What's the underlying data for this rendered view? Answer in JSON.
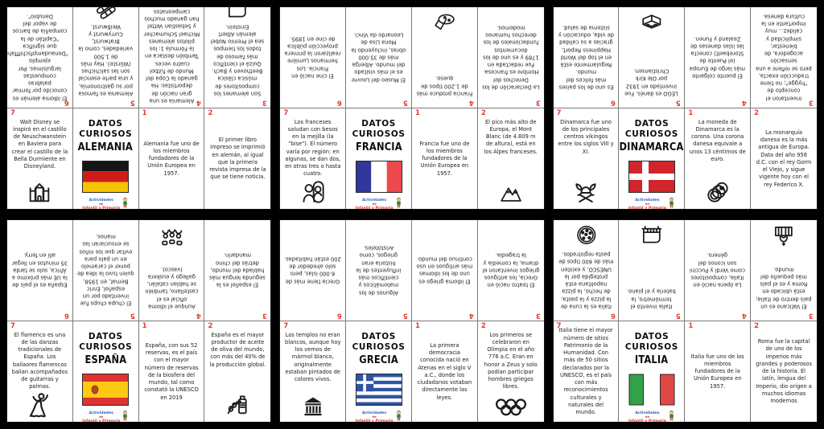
{
  "colors": {
    "page_bg": "#000000",
    "sheet_bg": "#ffffff",
    "number_red": "#e8392f",
    "text_dark": "#202020",
    "logo_blue": "#2b5fc7",
    "logo_red": "#d63b2f",
    "logo_green": "#2e8b3a",
    "flags": {
      "germany": [
        "#151515",
        "#d01b1b",
        "#f7c500"
      ],
      "france": [
        "#32379b",
        "#ffffff",
        "#ef4950"
      ],
      "denmark": [
        "#d2242c",
        "#ffffff"
      ],
      "spain": [
        "#dd3333",
        "#fdc913"
      ],
      "greece": [
        "#2e55a5",
        "#ffffff"
      ],
      "italy": [
        "#33a04a",
        "#ffffff",
        "#e04848"
      ]
    }
  },
  "cover_kicker": [
    "DATOS",
    "CURIOSOS"
  ],
  "logo": {
    "line1": "Actividades",
    "line2": "de",
    "line3": "Infantil y Primaria"
  },
  "booklets": [
    {
      "title": "ALEMANIA",
      "flag": "germany",
      "top_panels": [
        {
          "number": "6",
          "icon": null,
          "text": "El idioma alemán es conocido por formar palabras compuestas larguísimas. Por ejemplo \"Donaudampfschifffahrtsgesellschaftskapitän\", que significa \"Capitán de la compañía de barcos de vapor del Danubio\"."
        },
        {
          "number": "5",
          "icon": "sausages-icon",
          "text": "Alemania es famosa por su gastronomía, y una parte esencial son las salchichas (Würste). Hay más de 1.500 variedades, como la Bratwurst, Currywurst y Weißwurst."
        },
        {
          "number": "4",
          "icon": null,
          "text": "Alemania es una gran nación de deportistas: Ha ganado la Copa del Mundo de fútbol cuatro veces. También destaca en la Fórmula 1: los pilotos alemanes Michael Schumacher y Sebastian Vettel han ganado muchos campeonatos mundiales."
        },
        {
          "number": "3",
          "icon": "piano-icon",
          "text": "Son alemanes los compositores de música clásica Beethoven y Bach. Quizá el científico más famoso de todos los tiempos sea el Premio Nobel alemán Albert Einstein."
        }
      ],
      "bottom_panels": [
        {
          "number": "7",
          "icon": "castle-icon",
          "text": "Walt Disney se inspiró en el castillo de Neuschwanstein en Baviera para crear el castillo de la Bella Durmiente en Disneyland."
        },
        {
          "cover": true
        },
        {
          "number": "1",
          "icon": null,
          "text": "Alemania fue uno de los miembros fundadores de la Unión Europea en 1957."
        },
        {
          "number": "2",
          "icon": null,
          "text": "El primer libro impreso se imprimió en alemán, al igual que la primera revista impresa de la que se tiene noticia."
        }
      ]
    },
    {
      "title": "FRANCIA",
      "flag": "france",
      "top_panels": [
        {
          "number": "6",
          "icon": null,
          "text": "El cine nació en Francia. Los hermanos Lumière realizaron la primera proyección pública de cine en 1895."
        },
        {
          "number": "5",
          "icon": null,
          "text": "El Museo del Louvre es el más visitado del mundo. Alberga más de 35.000 obras, incluyendo la Mona Lisa de Leonardo da Vinci."
        },
        {
          "number": "4",
          "icon": "cheese-icon",
          "text": "Francia produce más de 1.200 tipos de queso."
        },
        {
          "number": "3",
          "icon": null,
          "text": "La Declaración de los Derechos del Hombre es francesa. Fue redactada en 1789 y es uno de los documentos fundacionales de los derechos humanos modernos."
        }
      ],
      "bottom_panels": [
        {
          "number": "7",
          "icon": "kiss-icon",
          "text": "Los franceses saludan con besos en la mejilla (la \"bise\"). El número varía por región: en algunas, se dan dos, en otras tres o hasta cuatro."
        },
        {
          "cover": true
        },
        {
          "number": "1",
          "icon": null,
          "text": "Francia fue uno de los miembros fundadores de la Unión Europea en 1957."
        },
        {
          "number": "2",
          "icon": "mountain-icon",
          "text": "El pico más alto de Europa, el Mont Blanc (de 4.809 m de altura), está en los Alpes franceses."
        }
      ]
    },
    {
      "title": "DINAMARCA",
      "flag": "denmark",
      "top_panels": [
        {
          "number": "6",
          "icon": null,
          "text": "Es uno de los países más felices del mundo. Regularmente está en el top del World Happiness Report, gracias a su calidad de vida, educación y sistema de salud."
        },
        {
          "number": "5",
          "icon": "lego-icon",
          "text": "LEGO es danés. Fue inventado en 1932 por Ole Kirk Christiansen."
        },
        {
          "number": "4",
          "icon": null,
          "text": "El puente colgante más largo de Europa (el Puente de Storebaelt) conecta las islas danesas de Zealand y Funen."
        },
        {
          "number": "3",
          "icon": null,
          "text": "Inventaron el concepto de \"hygge\"; no tiene traducción exacta, pero se refiere a una sensación acogedora, de bienestar, simplicidad y calidez... muy importante en la cultura danesa."
        }
      ],
      "bottom_panels": [
        {
          "number": "7",
          "icon": "viking-icon",
          "text": "Dinamarca fue uno de los principales centros vikingos entre los siglos VIII y XI."
        },
        {
          "cover": true
        },
        {
          "number": "1",
          "icon": "coins-icon",
          "text": "La moneda de Dinamarca es la corona. Una corona danesa equivale a unos 13 céntimos de euro."
        },
        {
          "number": "2",
          "icon": null,
          "text": "La monarquía danesa es la más antigua de Europa. Data del año 958 d.C. con el rey Gorm el Viejo, y sigue vigente hoy con el rey Federico X."
        }
      ]
    },
    {
      "title": "ESPAÑA",
      "flag": "spain",
      "top_panels": [
        {
          "number": "6",
          "icon": null,
          "text": "España es el país de la UE más próximo a África, solo se tarda 35 minutos en llegar allí en ferry."
        },
        {
          "number": "5",
          "icon": null,
          "text": "El chupa chups fue inventado por un español, Enric Bernat, en 1958, quien tuvo la idea de poner el caramelo en un palo para evitar que los niños se ensuciaran las manos."
        },
        {
          "number": "4",
          "icon": "talk-icon",
          "text": "Aunque el idioma oficial es el castellano, también se hablan catalán, gallego y euskera (vasco)."
        },
        {
          "number": "3",
          "icon": null,
          "text": "El español es la segunda lengua más hablada del mundo, detrás del chino mandarín."
        }
      ],
      "bottom_panels": [
        {
          "number": "7",
          "icon": "flamenco-icon",
          "text": "El flamenco es una de las danzas tradicionales de España. Los bailaores flamencos bailan acompañados de guitarras y palmas."
        },
        {
          "cover": true
        },
        {
          "number": "1",
          "icon": null,
          "text": "España, con sus 52 reservas, es el país con el mayor número de reservas de la biosfera del mundo, tal como constató la UNESCO en 2019"
        },
        {
          "number": "2",
          "icon": "olive-icon",
          "text": "España es el mayor productor de aceite de oliva del mundo, con más del 40% de la producción global."
        }
      ]
    },
    {
      "title": "GRECIA",
      "flag": "greece",
      "top_panels": [
        {
          "number": "6",
          "icon": null,
          "text": "Grecia tiene más de 6.000 islas, pero solo alrededor de 200 están habitadas."
        },
        {
          "number": "5",
          "icon": null,
          "text": "Algunos de los matemáticos y científicos más influyentes de la historia eran griegos, como Aristóteles."
        },
        {
          "number": "4",
          "icon": null,
          "text": "El idioma griego es uno de los idiomas más antiguos en uso continuo del mundo."
        },
        {
          "number": "3",
          "icon": null,
          "text": "El teatro nació en Grecia, los antiguos griegos inventaron el drama, la comedia y la tragedia."
        }
      ],
      "bottom_panels": [
        {
          "number": "7",
          "icon": "temple-icon",
          "text": "Los templos no eran blancos, aunque hoy los vemos de mármol blanco, originalmente estaban pintados de colores vivos."
        },
        {
          "cover": true
        },
        {
          "number": "1",
          "icon": null,
          "text": "La primera democracia conocida nació en Atenas en el siglo V a.C., donde los ciudadanos votaban directamente las leyes."
        },
        {
          "number": "2",
          "icon": "olympic-rings-icon",
          "text": "Los primeros se celebraron en Olimpia en el año 776 a.C. Eran en honor a Zeus y solo podían participar hombres griegos libres."
        }
      ]
    },
    {
      "title": "ITALIA",
      "flag": "italy",
      "top_panels": [
        {
          "number": "6",
          "icon": "pizza-icon",
          "text": "Italia es la cuna de la pizza y la pasta; de hecho, la pizza napolitana está protegida por la UNESCO, y existen más de 600 tipos de pasta registrados."
        },
        {
          "number": "5",
          "icon": "piano-icon",
          "text": "Italia inventó el termómetro, la batería y el piano."
        },
        {
          "number": "4",
          "icon": null,
          "text": "La ópera nació en Italia, compositores como Verdi y Puccini son iconos del género."
        },
        {
          "number": "3",
          "icon": "basilica-icon",
          "text": "El Vaticano es un país dentro de Italia; está ubicado en Roma y es el país más pequeño del mundo."
        }
      ],
      "bottom_panels": [
        {
          "number": "7",
          "icon": null,
          "text": "Italia tiene el mayor número de sitios Patrimonio de la Humanidad. Con más de 50 sitios declarados por la UNESCO, es el país con más reconocimientos culturales y naturales del mundo."
        },
        {
          "cover": true
        },
        {
          "number": "1",
          "icon": null,
          "text": "Italia fue uno de los miembros fundadores de la Unión Europea en 1957."
        },
        {
          "number": "2",
          "icon": null,
          "text": "Roma fue la capital de uno de los imperios más grandes y poderosos de la historia. El latín, lengua del Imperio, dio origen a muchos idiomas modernos"
        }
      ]
    }
  ]
}
